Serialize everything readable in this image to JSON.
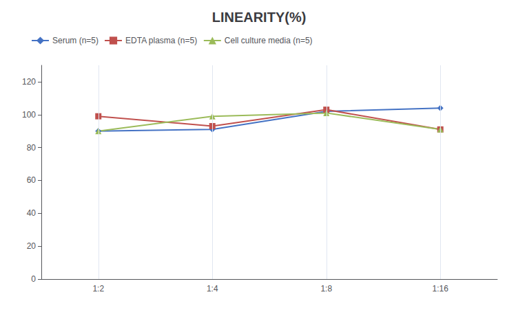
{
  "chart_data": {
    "type": "line",
    "title": "LINEARITY(%)",
    "categories": [
      "1:2",
      "1:4",
      "1:8",
      "1:16"
    ],
    "series": [
      {
        "name": "Serum (n=5)",
        "color": "#4472C4",
        "marker": "diamond",
        "values": [
          90,
          91,
          102,
          104
        ]
      },
      {
        "name": "EDTA plasma (n=5)",
        "color": "#C0504D",
        "marker": "square",
        "values": [
          99,
          93,
          103,
          91
        ]
      },
      {
        "name": "Cell culture media (n=5)",
        "color": "#9BBB59",
        "marker": "triangle",
        "values": [
          90,
          99,
          101,
          91
        ]
      }
    ],
    "ylim": [
      0,
      130
    ],
    "yticks": [
      0,
      20,
      40,
      60,
      80,
      100,
      120
    ],
    "grid": "x",
    "legend": "upper left"
  }
}
